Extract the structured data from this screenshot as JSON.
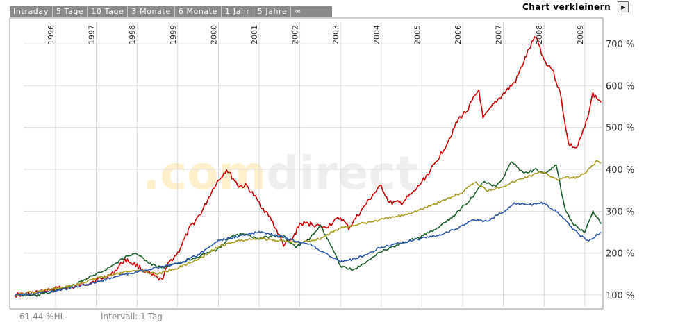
{
  "tabs": [
    {
      "label": "Intraday"
    },
    {
      "label": "5 Tage"
    },
    {
      "label": "10 Tage"
    },
    {
      "label": "3 Monate"
    },
    {
      "label": "6 Monate"
    },
    {
      "label": "1 Jahr"
    },
    {
      "label": "5 Jahre"
    },
    {
      "label": "∞"
    }
  ],
  "toolbar": {
    "shrink_label": "Chart verkleinern",
    "shrink_icon": "play-triangle-icon"
  },
  "watermark": {
    "prefix": ".com",
    "suffix": "direct",
    "prefix_color": "#fff0cc",
    "suffix_color": "#eeeeee"
  },
  "footer": {
    "left": "61,44 %HL",
    "interval": "Intervall: 1 Tag"
  },
  "chart_data": {
    "type": "line",
    "xlim": [
      1995.0,
      2009.4
    ],
    "ylim": [
      80,
      760
    ],
    "y_ticks": [
      {
        "value": 100,
        "label": "100 %"
      },
      {
        "value": 200,
        "label": "200 %"
      },
      {
        "value": 300,
        "label": "300 %"
      },
      {
        "value": 400,
        "label": "400 %"
      },
      {
        "value": 500,
        "label": "500 %"
      },
      {
        "value": 600,
        "label": "600 %"
      },
      {
        "value": 700,
        "label": "700 %"
      }
    ],
    "x_ticks": [
      "1996",
      "1997",
      "1998",
      "1999",
      "2000",
      "2001",
      "2002",
      "2003",
      "2004",
      "2005",
      "2006",
      "2007",
      "2008",
      "2009"
    ],
    "grid": true,
    "series": [
      {
        "color": "#cc0000",
        "x": [
          1995.0,
          1995.5,
          1996.0,
          1996.5,
          1997.0,
          1997.4,
          1997.7,
          1998.0,
          1998.3,
          1998.6,
          1998.8,
          1999.0,
          1999.3,
          1999.6,
          1999.9,
          2000.2,
          2000.5,
          2000.7,
          2001.0,
          2001.3,
          2001.6,
          2001.8,
          2002.0,
          2002.3,
          2002.6,
          2003.0,
          2003.2,
          2003.5,
          2003.8,
          2004.0,
          2004.2,
          2004.5,
          2004.8,
          2005.0,
          2005.3,
          2005.6,
          2005.9,
          2006.1,
          2006.4,
          2006.5,
          2006.8,
          2007.0,
          2007.3,
          2007.6,
          2007.8,
          2008.0,
          2008.2,
          2008.4,
          2008.6,
          2008.8,
          2009.0,
          2009.2,
          2009.4
        ],
        "values": [
          100,
          105,
          115,
          120,
          135,
          150,
          185,
          170,
          150,
          135,
          180,
          200,
          260,
          300,
          360,
          400,
          360,
          360,
          320,
          280,
          220,
          230,
          270,
          270,
          260,
          285,
          260,
          300,
          340,
          360,
          320,
          320,
          345,
          370,
          410,
          460,
          520,
          540,
          590,
          520,
          560,
          580,
          610,
          680,
          720,
          660,
          640,
          580,
          460,
          450,
          500,
          580,
          560
        ]
      },
      {
        "color": "#1a5e2a",
        "x": [
          1995.0,
          1995.5,
          1996.0,
          1996.5,
          1997.0,
          1997.4,
          1997.7,
          1998.0,
          1998.3,
          1998.6,
          1999.0,
          1999.3,
          1999.6,
          2000.0,
          2000.3,
          2000.6,
          2001.0,
          2001.3,
          2001.6,
          2001.9,
          2002.2,
          2002.5,
          2002.7,
          2003.0,
          2003.3,
          2003.6,
          2003.9,
          2004.3,
          2004.7,
          2005.0,
          2005.4,
          2005.8,
          2006.1,
          2006.3,
          2006.5,
          2006.8,
          2007.0,
          2007.2,
          2007.5,
          2007.8,
          2008.0,
          2008.3,
          2008.5,
          2008.7,
          2009.0,
          2009.2,
          2009.4
        ],
        "values": [
          100,
          98,
          110,
          125,
          150,
          170,
          190,
          200,
          175,
          165,
          175,
          185,
          195,
          210,
          240,
          245,
          235,
          240,
          240,
          215,
          230,
          265,
          230,
          170,
          160,
          175,
          200,
          215,
          230,
          240,
          260,
          290,
          320,
          340,
          370,
          360,
          380,
          420,
          390,
          400,
          390,
          410,
          310,
          270,
          250,
          300,
          270
        ]
      },
      {
        "color": "#a89a20",
        "x": [
          1995.0,
          1995.5,
          1996.0,
          1996.5,
          1997.0,
          1997.5,
          1998.0,
          1998.5,
          1999.0,
          1999.5,
          2000.0,
          2000.5,
          2001.0,
          2001.5,
          2002.0,
          2002.5,
          2003.0,
          2003.5,
          2004.0,
          2004.5,
          2005.0,
          2005.5,
          2006.0,
          2006.3,
          2006.6,
          2007.0,
          2007.5,
          2008.0,
          2008.3,
          2008.5,
          2008.8,
          2009.0,
          2009.3,
          2009.4
        ],
        "values": [
          100,
          108,
          115,
          125,
          140,
          150,
          160,
          150,
          165,
          185,
          215,
          230,
          235,
          230,
          225,
          235,
          260,
          270,
          280,
          290,
          305,
          325,
          345,
          370,
          350,
          360,
          380,
          395,
          375,
          380,
          380,
          390,
          420,
          415
        ]
      },
      {
        "color": "#2b57b0",
        "x": [
          1995.0,
          1995.5,
          1996.0,
          1996.5,
          1997.0,
          1997.5,
          1998.0,
          1998.5,
          1999.0,
          1999.5,
          2000.0,
          2000.5,
          2001.0,
          2001.5,
          2002.0,
          2002.3,
          2002.6,
          2003.0,
          2003.3,
          2003.6,
          2004.0,
          2004.5,
          2005.0,
          2005.5,
          2006.0,
          2006.3,
          2006.6,
          2007.0,
          2007.3,
          2007.6,
          2008.0,
          2008.3,
          2008.6,
          2008.9,
          2009.1,
          2009.4
        ],
        "values": [
          100,
          103,
          110,
          120,
          130,
          145,
          155,
          165,
          175,
          195,
          230,
          240,
          250,
          240,
          225,
          220,
          200,
          180,
          185,
          195,
          215,
          225,
          235,
          245,
          265,
          280,
          275,
          300,
          320,
          315,
          320,
          300,
          270,
          240,
          230,
          250
        ]
      }
    ]
  }
}
